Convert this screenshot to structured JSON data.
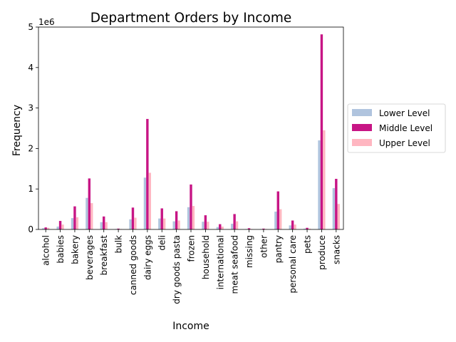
{
  "chart_data": {
    "type": "bar",
    "title": "Department Orders by Income",
    "xlabel": "Income",
    "ylabel": "Frequency",
    "y_multiplier_label": "1e6",
    "ylim": [
      0,
      5
    ],
    "y_ticks": [
      "0",
      "1",
      "2",
      "3",
      "4",
      "5"
    ],
    "grid": false,
    "legend_position": "right",
    "categories": [
      "alcohol",
      "babies",
      "bakery",
      "beverages",
      "breakfast",
      "bulk",
      "canned goods",
      "dairy eggs",
      "deli",
      "dry goods pasta",
      "frozen",
      "household",
      "international",
      "meat seafood",
      "missing",
      "other",
      "pantry",
      "personal care",
      "pets",
      "produce",
      "snacks"
    ],
    "series": [
      {
        "name": "Lower Level",
        "color": "#b0c4de",
        "values": [
          0.03,
          0.07,
          0.28,
          0.78,
          0.18,
          0.01,
          0.25,
          1.28,
          0.27,
          0.2,
          0.55,
          0.19,
          0.06,
          0.14,
          0.01,
          0.01,
          0.44,
          0.1,
          0.02,
          2.2,
          1.02
        ]
      },
      {
        "name": "Middle Level",
        "color": "#c71585",
        "values": [
          0.05,
          0.21,
          0.57,
          1.26,
          0.32,
          0.02,
          0.54,
          2.73,
          0.52,
          0.45,
          1.11,
          0.35,
          0.13,
          0.38,
          0.03,
          0.02,
          0.94,
          0.22,
          0.04,
          4.82,
          1.25
        ]
      },
      {
        "name": "Upper Level",
        "color": "#ffb6c1",
        "values": [
          0.04,
          0.12,
          0.3,
          0.65,
          0.18,
          0.01,
          0.29,
          1.4,
          0.27,
          0.22,
          0.58,
          0.19,
          0.07,
          0.2,
          0.01,
          0.01,
          0.5,
          0.12,
          0.02,
          2.45,
          0.63
        ]
      }
    ]
  }
}
